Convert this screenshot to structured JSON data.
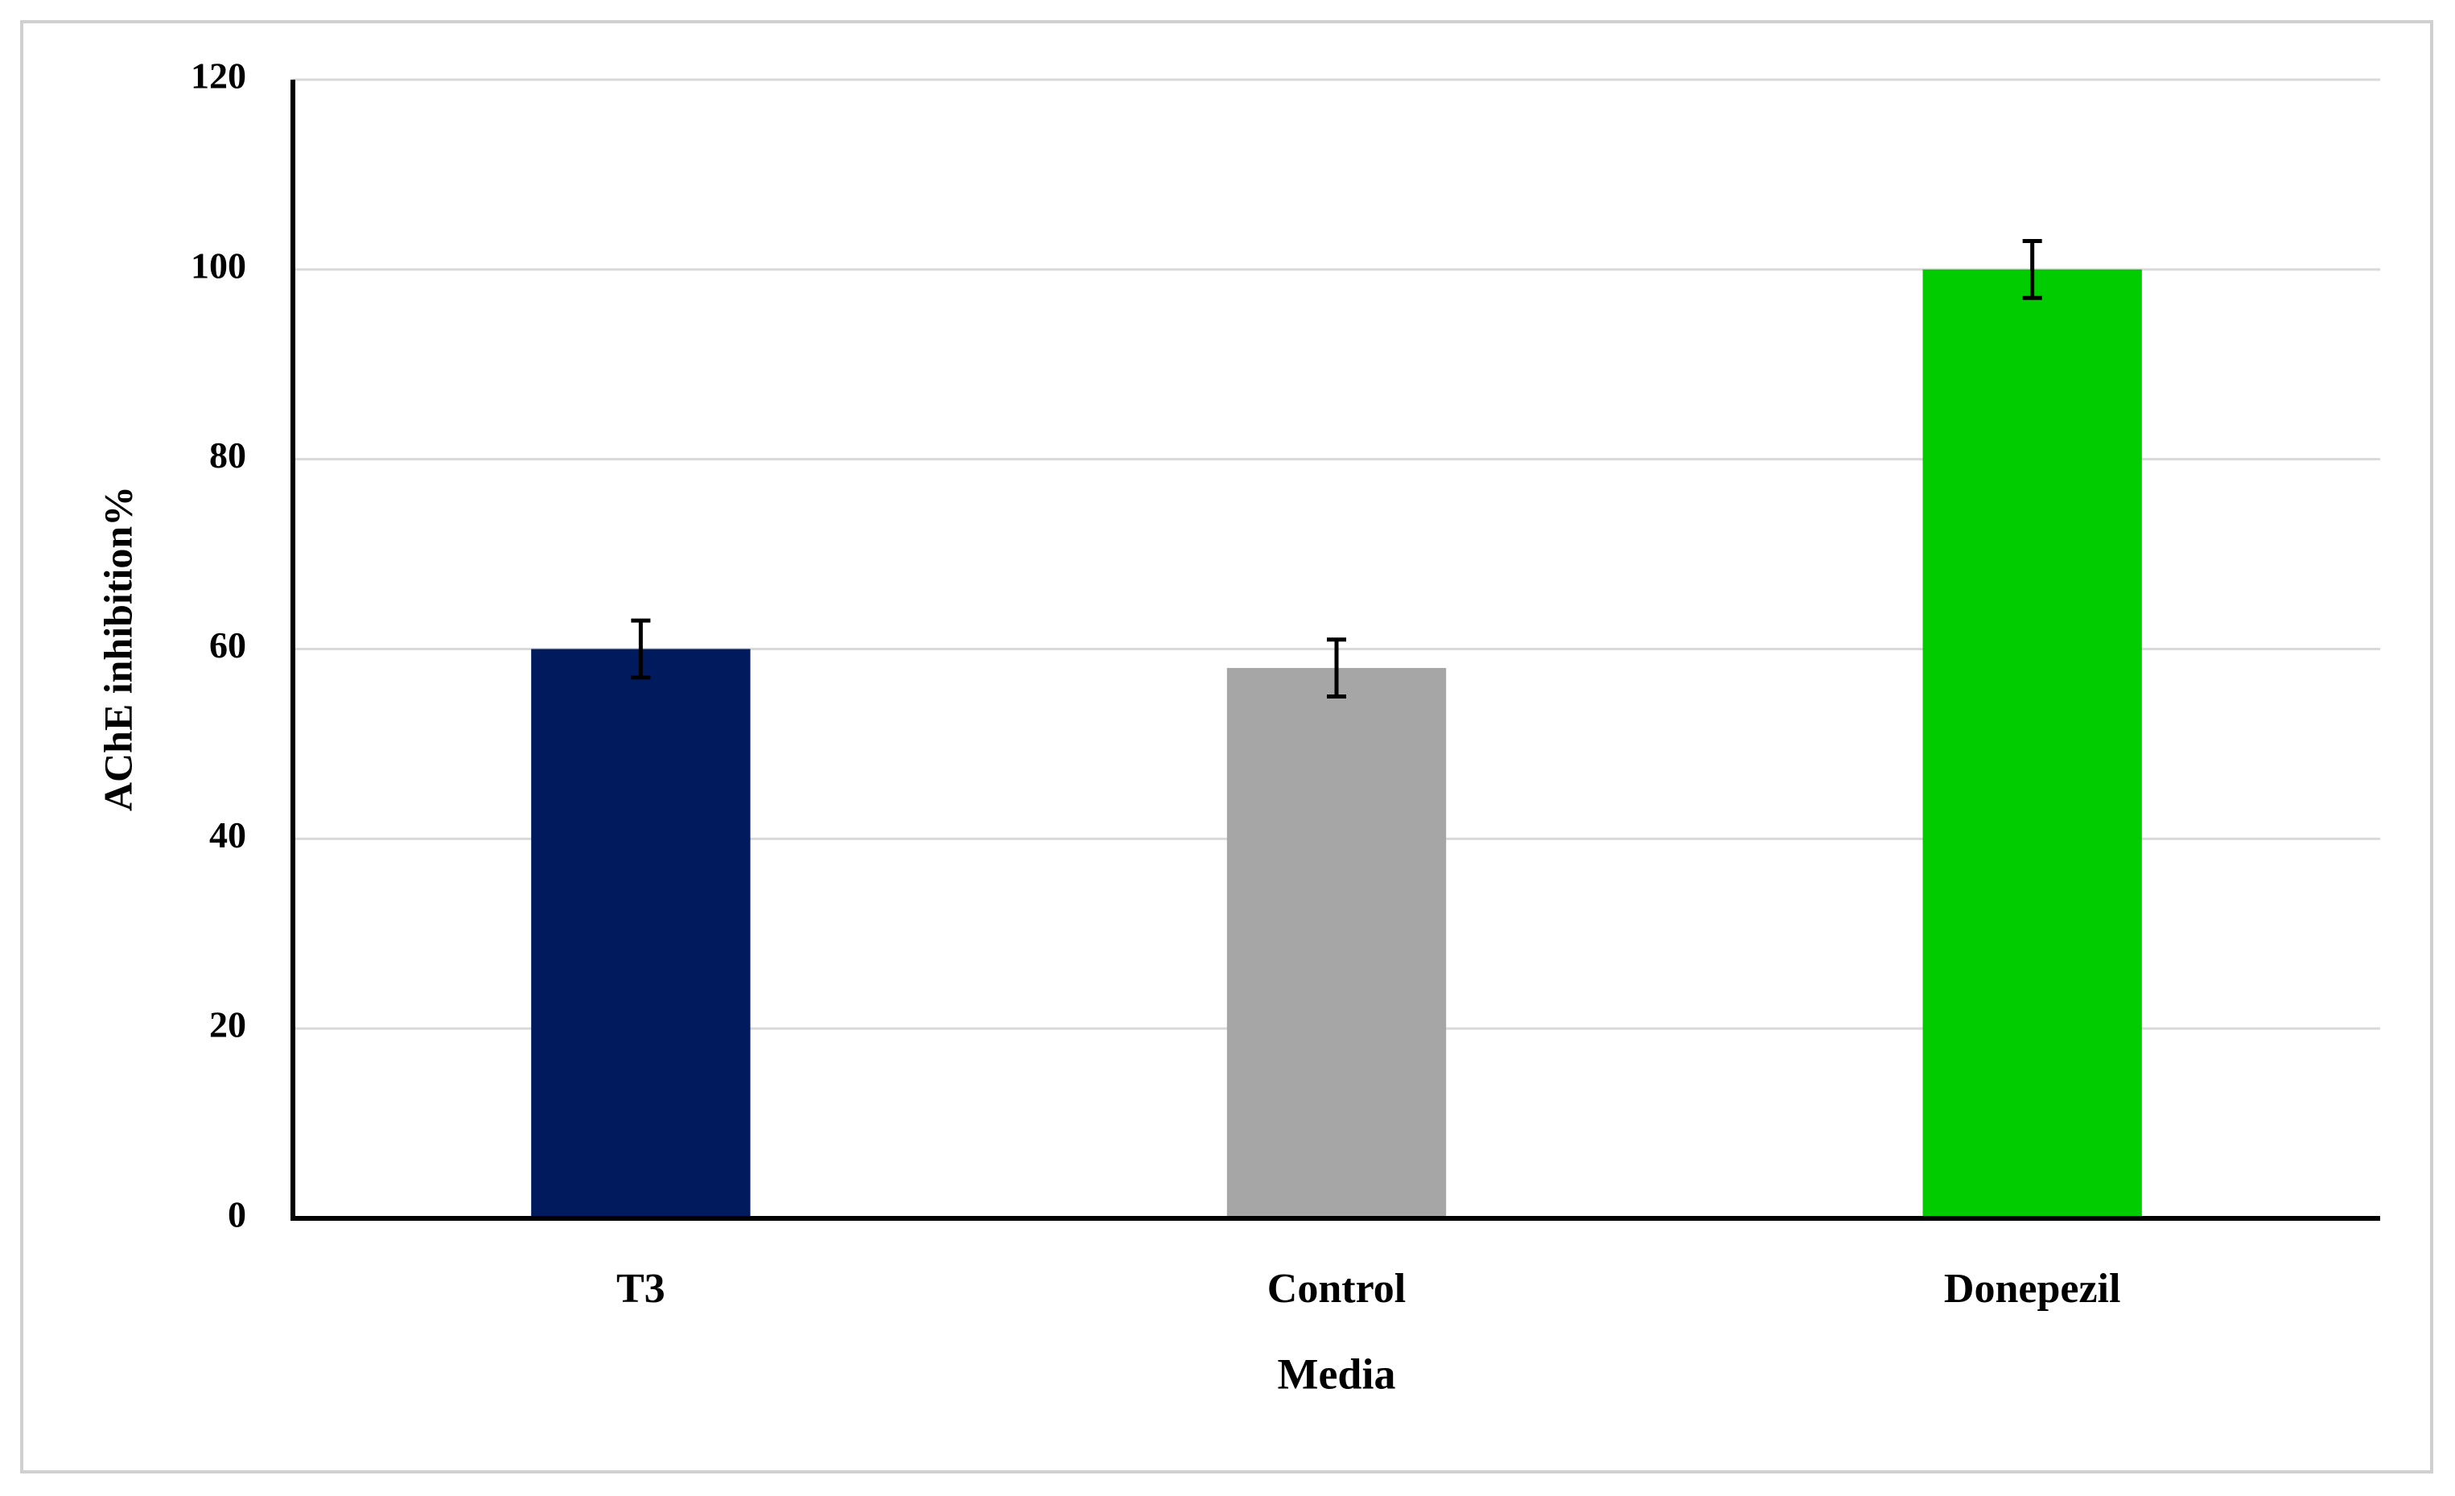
{
  "chart_data": {
    "type": "bar",
    "categories": [
      "T3",
      "Control",
      "Donepezil"
    ],
    "values": [
      60,
      58,
      100
    ],
    "errors": [
      3,
      3,
      3
    ],
    "colors": [
      "#001a5e",
      "#a6a6a6",
      "#00cc00"
    ],
    "x_label": "Media",
    "y_label": "AChE inhibition%",
    "ylim": [
      0,
      120
    ],
    "yticks": [
      0,
      20,
      40,
      60,
      80,
      100,
      120
    ],
    "grid": true
  }
}
